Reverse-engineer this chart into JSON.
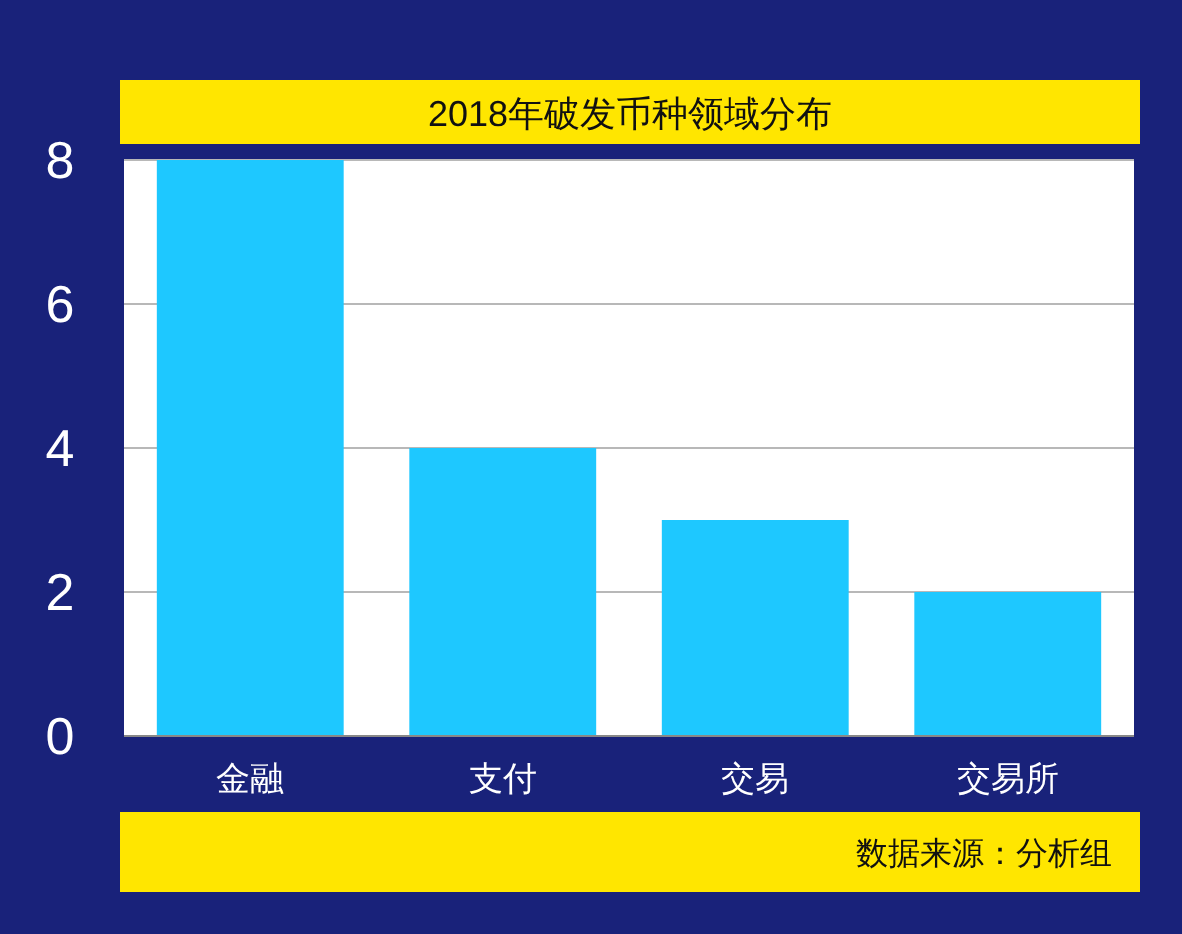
{
  "chart_data": {
    "type": "bar",
    "title": "2018年破发币种领域分布",
    "categories": [
      "金融",
      "支付",
      "交易",
      "交易所"
    ],
    "values": [
      8,
      4,
      3,
      2
    ],
    "color": "#1ec8ff",
    "ylim": [
      0,
      8
    ],
    "yticks": [
      0,
      2,
      4,
      6,
      8
    ],
    "grid": "y",
    "annotations": [
      "数据来源：分析组"
    ]
  }
}
